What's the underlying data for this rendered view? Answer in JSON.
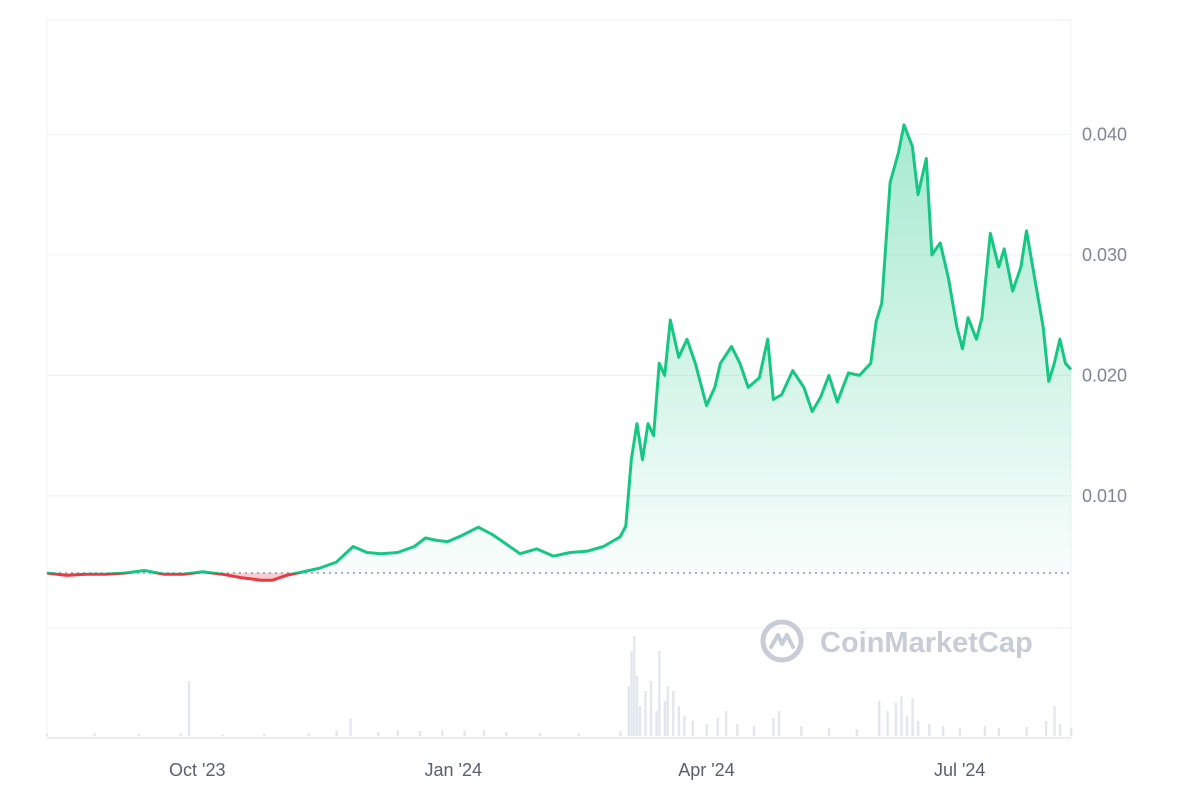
{
  "watermark": {
    "text": "CoinMarketCap"
  },
  "colors": {
    "up": "#16c784",
    "down": "#ea3943",
    "grid": "#eff2f5",
    "volume": "#e3e7ed",
    "baseline": "#858ca2"
  },
  "chart_data": {
    "type": "area",
    "title": "",
    "xlabel": "",
    "ylabel": "",
    "x_range": [
      "2023-08-08",
      "2024-08-10"
    ],
    "ylim": [
      -0.0101,
      0.0495
    ],
    "y_ticks": [
      0.01,
      0.02,
      0.03,
      0.04
    ],
    "y_tick_labels": [
      "0.010",
      "0.020",
      "0.030",
      "0.040"
    ],
    "x_ticks": [
      "2023-10-01",
      "2024-01-01",
      "2024-04-01",
      "2024-07-01"
    ],
    "x_tick_labels": [
      "Oct '23",
      "Jan '24",
      "Apr '24",
      "Jul '24"
    ],
    "grid": true,
    "legend": "none",
    "baseline_price": 0.0036,
    "price": [
      [
        "2023-08-08",
        0.0036
      ],
      [
        "2023-08-15",
        0.0034
      ],
      [
        "2023-08-22",
        0.0035
      ],
      [
        "2023-08-29",
        0.0035
      ],
      [
        "2023-09-05",
        0.0036
      ],
      [
        "2023-09-12",
        0.0038
      ],
      [
        "2023-09-19",
        0.0035
      ],
      [
        "2023-09-26",
        0.0035
      ],
      [
        "2023-10-03",
        0.0037
      ],
      [
        "2023-10-10",
        0.0035
      ],
      [
        "2023-10-17",
        0.0032
      ],
      [
        "2023-10-24",
        0.003
      ],
      [
        "2023-10-28",
        0.003
      ],
      [
        "2023-11-02",
        0.0034
      ],
      [
        "2023-11-08",
        0.0037
      ],
      [
        "2023-11-14",
        0.004
      ],
      [
        "2023-11-20",
        0.0045
      ],
      [
        "2023-11-26",
        0.0058
      ],
      [
        "2023-12-01",
        0.0053
      ],
      [
        "2023-12-06",
        0.0052
      ],
      [
        "2023-12-12",
        0.0053
      ],
      [
        "2023-12-18",
        0.0058
      ],
      [
        "2023-12-22",
        0.0065
      ],
      [
        "2023-12-26",
        0.0063
      ],
      [
        "2023-12-30",
        0.0062
      ],
      [
        "2024-01-04",
        0.0067
      ],
      [
        "2024-01-10",
        0.0074
      ],
      [
        "2024-01-15",
        0.0068
      ],
      [
        "2024-01-20",
        0.006
      ],
      [
        "2024-01-25",
        0.0052
      ],
      [
        "2024-01-31",
        0.0056
      ],
      [
        "2024-02-06",
        0.005
      ],
      [
        "2024-02-12",
        0.0053
      ],
      [
        "2024-02-18",
        0.0054
      ],
      [
        "2024-02-24",
        0.0058
      ],
      [
        "2024-03-01",
        0.0066
      ],
      [
        "2024-03-03",
        0.0075
      ],
      [
        "2024-03-05",
        0.013
      ],
      [
        "2024-03-07",
        0.016
      ],
      [
        "2024-03-09",
        0.013
      ],
      [
        "2024-03-11",
        0.016
      ],
      [
        "2024-03-13",
        0.015
      ],
      [
        "2024-03-15",
        0.021
      ],
      [
        "2024-03-17",
        0.02
      ],
      [
        "2024-03-19",
        0.0246
      ],
      [
        "2024-03-22",
        0.0215
      ],
      [
        "2024-03-25",
        0.023
      ],
      [
        "2024-03-28",
        0.021
      ],
      [
        "2024-04-01",
        0.0175
      ],
      [
        "2024-04-04",
        0.019
      ],
      [
        "2024-04-06",
        0.021
      ],
      [
        "2024-04-10",
        0.0224
      ],
      [
        "2024-04-13",
        0.021
      ],
      [
        "2024-04-16",
        0.019
      ],
      [
        "2024-04-20",
        0.0198
      ],
      [
        "2024-04-23",
        0.023
      ],
      [
        "2024-04-25",
        0.018
      ],
      [
        "2024-04-28",
        0.0184
      ],
      [
        "2024-05-02",
        0.0204
      ],
      [
        "2024-05-06",
        0.019
      ],
      [
        "2024-05-09",
        0.017
      ],
      [
        "2024-05-12",
        0.0182
      ],
      [
        "2024-05-15",
        0.02
      ],
      [
        "2024-05-18",
        0.0178
      ],
      [
        "2024-05-22",
        0.0202
      ],
      [
        "2024-05-26",
        0.02
      ],
      [
        "2024-05-30",
        0.021
      ],
      [
        "2024-06-01",
        0.0245
      ],
      [
        "2024-06-03",
        0.026
      ],
      [
        "2024-06-06",
        0.036
      ],
      [
        "2024-06-09",
        0.0385
      ],
      [
        "2024-06-11",
        0.0408
      ],
      [
        "2024-06-14",
        0.039
      ],
      [
        "2024-06-16",
        0.035
      ],
      [
        "2024-06-19",
        0.038
      ],
      [
        "2024-06-21",
        0.03
      ],
      [
        "2024-06-24",
        0.031
      ],
      [
        "2024-06-27",
        0.028
      ],
      [
        "2024-06-30",
        0.024
      ],
      [
        "2024-07-02",
        0.0222
      ],
      [
        "2024-07-04",
        0.0248
      ],
      [
        "2024-07-07",
        0.023
      ],
      [
        "2024-07-09",
        0.0248
      ],
      [
        "2024-07-12",
        0.0318
      ],
      [
        "2024-07-15",
        0.029
      ],
      [
        "2024-07-17",
        0.0305
      ],
      [
        "2024-07-20",
        0.027
      ],
      [
        "2024-07-23",
        0.029
      ],
      [
        "2024-07-25",
        0.032
      ],
      [
        "2024-07-28",
        0.028
      ],
      [
        "2024-07-31",
        0.024
      ],
      [
        "2024-08-02",
        0.0195
      ],
      [
        "2024-08-04",
        0.021
      ],
      [
        "2024-08-06",
        0.023
      ],
      [
        "2024-08-08",
        0.021
      ],
      [
        "2024-08-10",
        0.0205
      ]
    ],
    "volume_ylim": [
      0,
      1
    ],
    "volume": [
      [
        "2023-08-08",
        0.02
      ],
      [
        "2023-08-25",
        0.03
      ],
      [
        "2023-09-10",
        0.02
      ],
      [
        "2023-09-25",
        0.03
      ],
      [
        "2023-09-28",
        0.55
      ],
      [
        "2023-10-10",
        0.02
      ],
      [
        "2023-10-25",
        0.02
      ],
      [
        "2023-11-10",
        0.03
      ],
      [
        "2023-11-20",
        0.05
      ],
      [
        "2023-11-25",
        0.18
      ],
      [
        "2023-12-05",
        0.04
      ],
      [
        "2023-12-12",
        0.06
      ],
      [
        "2023-12-20",
        0.05
      ],
      [
        "2023-12-28",
        0.06
      ],
      [
        "2024-01-05",
        0.05
      ],
      [
        "2024-01-12",
        0.06
      ],
      [
        "2024-01-20",
        0.04
      ],
      [
        "2024-02-01",
        0.03
      ],
      [
        "2024-02-15",
        0.03
      ],
      [
        "2024-03-01",
        0.05
      ],
      [
        "2024-03-04",
        0.5
      ],
      [
        "2024-03-05",
        0.85
      ],
      [
        "2024-03-06",
        1.0
      ],
      [
        "2024-03-07",
        0.6
      ],
      [
        "2024-03-08",
        0.3
      ],
      [
        "2024-03-10",
        0.45
      ],
      [
        "2024-03-12",
        0.55
      ],
      [
        "2024-03-14",
        0.25
      ],
      [
        "2024-03-15",
        0.85
      ],
      [
        "2024-03-17",
        0.35
      ],
      [
        "2024-03-18",
        0.5
      ],
      [
        "2024-03-20",
        0.45
      ],
      [
        "2024-03-22",
        0.3
      ],
      [
        "2024-03-24",
        0.2
      ],
      [
        "2024-03-27",
        0.15
      ],
      [
        "2024-04-01",
        0.12
      ],
      [
        "2024-04-05",
        0.18
      ],
      [
        "2024-04-08",
        0.25
      ],
      [
        "2024-04-12",
        0.12
      ],
      [
        "2024-04-18",
        0.1
      ],
      [
        "2024-04-25",
        0.18
      ],
      [
        "2024-04-27",
        0.25
      ],
      [
        "2024-05-05",
        0.1
      ],
      [
        "2024-05-15",
        0.08
      ],
      [
        "2024-05-25",
        0.07
      ],
      [
        "2024-06-02",
        0.35
      ],
      [
        "2024-06-05",
        0.25
      ],
      [
        "2024-06-08",
        0.33
      ],
      [
        "2024-06-10",
        0.4
      ],
      [
        "2024-06-12",
        0.2
      ],
      [
        "2024-06-14",
        0.38
      ],
      [
        "2024-06-16",
        0.15
      ],
      [
        "2024-06-20",
        0.12
      ],
      [
        "2024-06-25",
        0.1
      ],
      [
        "2024-07-01",
        0.08
      ],
      [
        "2024-07-10",
        0.1
      ],
      [
        "2024-07-15",
        0.08
      ],
      [
        "2024-07-25",
        0.09
      ],
      [
        "2024-08-01",
        0.15
      ],
      [
        "2024-08-04",
        0.3
      ],
      [
        "2024-08-06",
        0.12
      ],
      [
        "2024-08-10",
        0.08
      ]
    ]
  }
}
